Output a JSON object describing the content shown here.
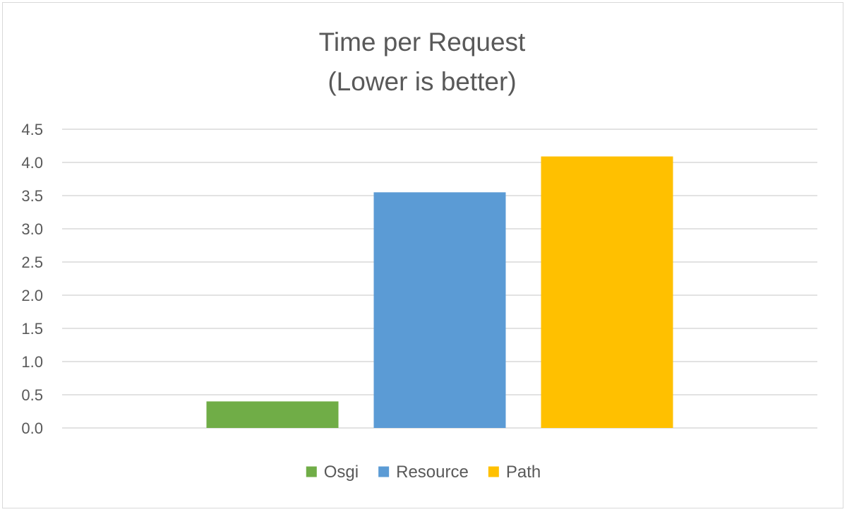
{
  "chart_data": {
    "type": "bar",
    "title": [
      "Time per Request",
      "(Lower is better)"
    ],
    "xlabel": "",
    "ylabel": "",
    "ylim": [
      0,
      4.5
    ],
    "ytick_labels": [
      "0.0",
      "0.5",
      "1.0",
      "1.5",
      "2.0",
      "2.5",
      "3.0",
      "3.5",
      "4.0",
      "4.5"
    ],
    "grid": true,
    "legend_position": "bottom",
    "series": [
      {
        "name": "Osgi",
        "values": [
          0.4
        ],
        "color": "#70AD47"
      },
      {
        "name": "Resource",
        "values": [
          3.55
        ],
        "color": "#5B9BD5"
      },
      {
        "name": "Path",
        "values": [
          4.09
        ],
        "color": "#FFC000"
      }
    ]
  }
}
